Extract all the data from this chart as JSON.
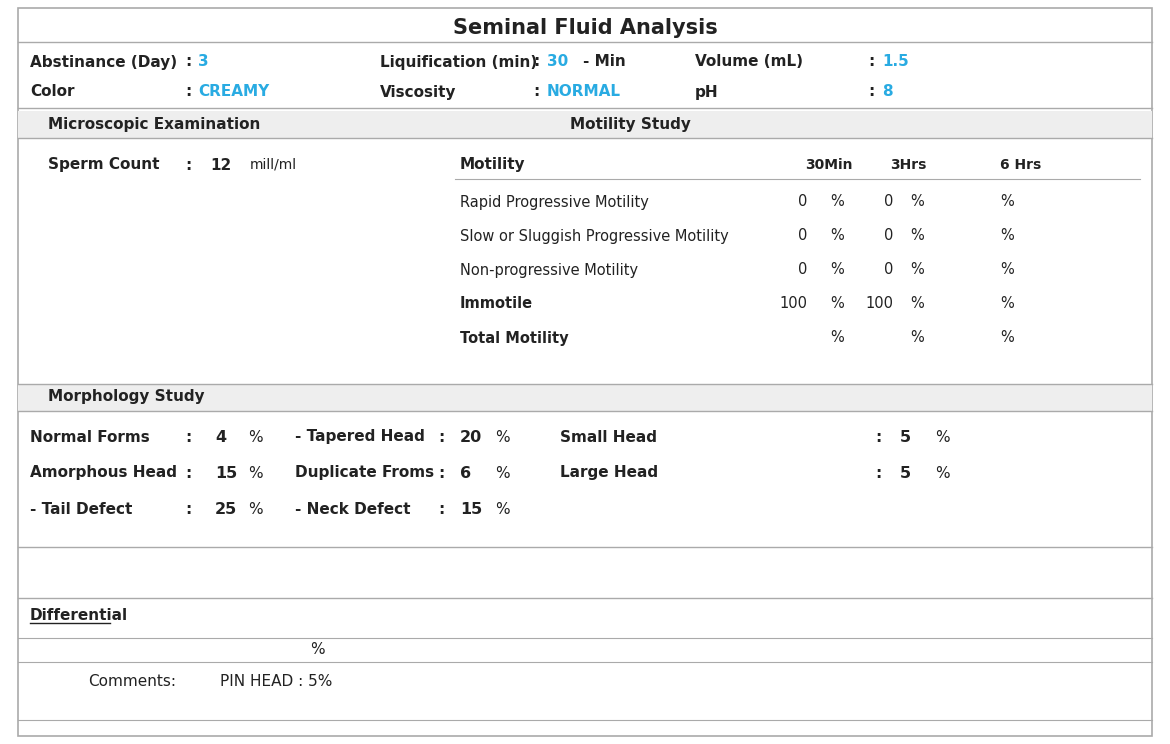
{
  "title": "Seminal Fluid Analysis",
  "bg_color": "#ffffff",
  "text_color": "#222222",
  "highlight_color": "#29abe2",
  "section_bg": "#eeeeee",
  "abstinance_label": "Abstinance (Day)",
  "abstinance_value": "3",
  "liquification_label": "Liquification (min)",
  "liquification_value": "30",
  "liquification_unit": "- Min",
  "volume_label": "Volume (mL)",
  "volume_value": "1.5",
  "color_label": "Color",
  "color_value": "CREAMY",
  "viscosity_label": "Viscosity",
  "viscosity_value": "NORMAL",
  "ph_label": "pH",
  "ph_value": "8",
  "microscopic_label": "Microscopic Examination",
  "motility_study_label": "Motility Study",
  "sperm_count_label": "Sperm Count",
  "sperm_count_value": "12",
  "sperm_count_unit": "mill/ml",
  "motility_col_headers": [
    "Motility",
    "30Min",
    "3Hrs",
    "6 Hrs"
  ],
  "motility_rows": [
    {
      "label": "Rapid Progressive Motility",
      "v30": "0",
      "v3h": "0",
      "bold": false
    },
    {
      "label": "Slow or Sluggish Progressive Motility",
      "v30": "0",
      "v3h": "0",
      "bold": false
    },
    {
      "label": "Non-progressive Motility",
      "v30": "0",
      "v3h": "0",
      "bold": false
    },
    {
      "label": "Immotile",
      "v30": "100",
      "v3h": "100",
      "bold": true
    },
    {
      "label": "Total Motility",
      "v30": "",
      "v3h": "",
      "bold": true
    }
  ],
  "morphology_label": "Morphology Study",
  "morphology_rows": [
    {
      "c1_label": "Normal Forms",
      "c1_val": "4",
      "c1_pct": "%",
      "c2_label": "- Tapered Head",
      "c2_val": "20",
      "c2_pct": "%",
      "c3_label": "Small Head",
      "c3_val": "5",
      "c3_pct": "%"
    },
    {
      "c1_label": "Amorphous Head",
      "c1_val": "15",
      "c1_pct": "%",
      "c2_label": "Duplicate Froms",
      "c2_val": "6",
      "c2_pct": "%",
      "c3_label": "Large Head",
      "c3_val": "5",
      "c3_pct": "%"
    },
    {
      "c1_label": "- Tail Defect",
      "c1_val": "25",
      "c1_pct": "%",
      "c2_label": "- Neck Defect",
      "c2_val": "15",
      "c2_pct": "%",
      "c3_label": "",
      "c3_val": "",
      "c3_pct": ""
    }
  ],
  "differential_label": "Differential",
  "differential_pct": "%",
  "comments_label": "Comments:",
  "comments_value": "PIN HEAD : 5%"
}
